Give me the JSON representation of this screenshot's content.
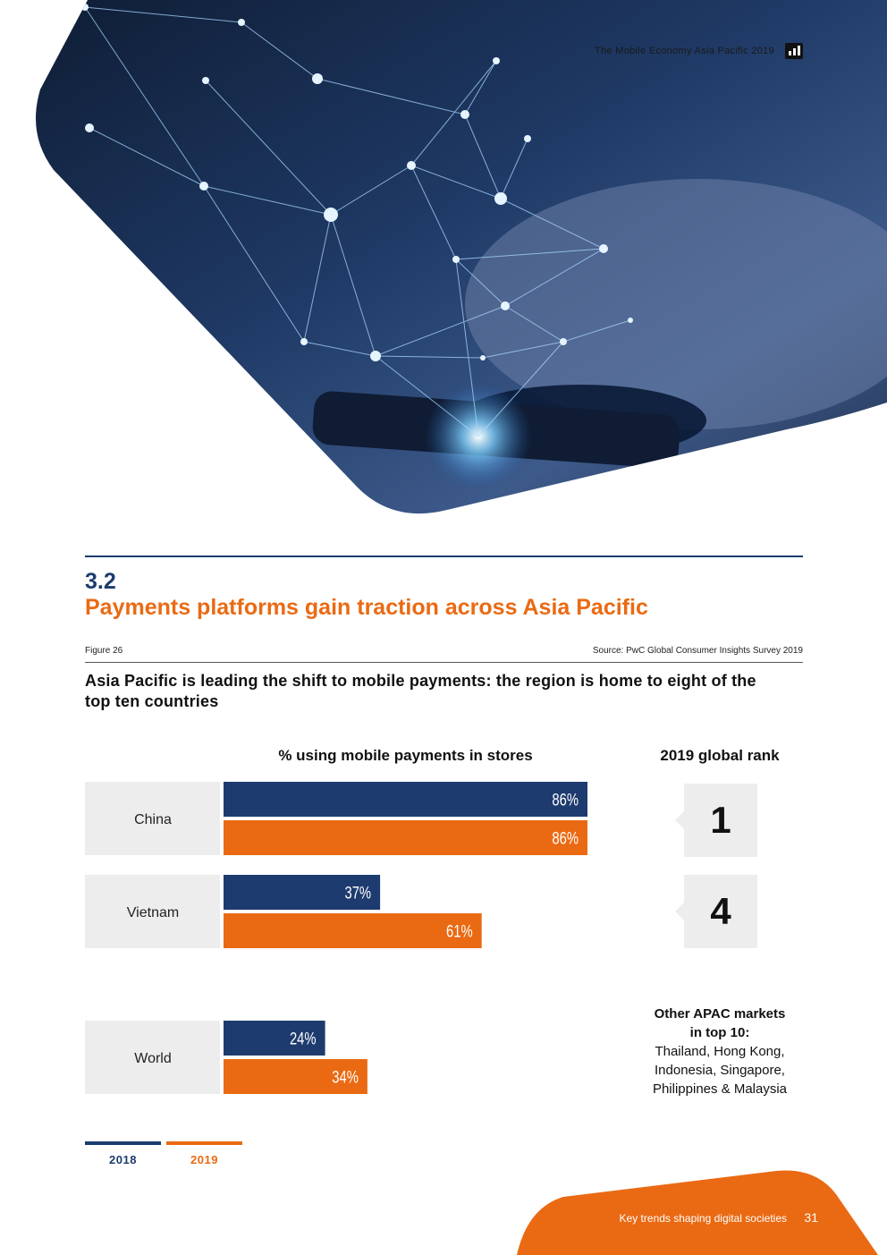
{
  "header": {
    "report_title": "The Mobile Economy Asia Pacific 2019"
  },
  "section": {
    "number": "3.2",
    "title": "Payments platforms gain traction across Asia Pacific"
  },
  "figure": {
    "label": "Figure 26",
    "source": "Source: PwC Global Consumer Insights Survey 2019",
    "subtitle": "Asia Pacific is leading the shift to mobile payments: the region is home to eight of the top ten countries"
  },
  "colors": {
    "navy": "#1d3b6e",
    "orange": "#ea6a13",
    "label_bg": "#ededed"
  },
  "chart_data": {
    "type": "bar",
    "orientation": "horizontal",
    "title": "% using mobile payments in stores",
    "categories": [
      "China",
      "Vietnam",
      "World"
    ],
    "series": [
      {
        "name": "2018",
        "values": [
          86,
          37,
          24
        ],
        "labels": [
          "86%",
          "37%",
          "24%"
        ],
        "color": "#1d3b6e"
      },
      {
        "name": "2019",
        "values": [
          86,
          61,
          34
        ],
        "labels": [
          "86%",
          "61%",
          "34%"
        ],
        "color": "#ea6a13"
      }
    ],
    "xlim": [
      0,
      86
    ],
    "grid": false,
    "legend": "bottom-left"
  },
  "ranks": {
    "heading": "2019 global rank",
    "values": [
      "1",
      "4"
    ]
  },
  "other_markets": {
    "heading_line1": "Other APAC markets",
    "heading_line2": "in top 10:",
    "list_line1": "Thailand, Hong Kong,",
    "list_line2": "Indonesia, Singapore,",
    "list_line3": "Philippines & Malaysia"
  },
  "legend": {
    "y2018": "2018",
    "y2019": "2019"
  },
  "footer": {
    "text": "Key trends shaping digital societies",
    "page": "31"
  }
}
